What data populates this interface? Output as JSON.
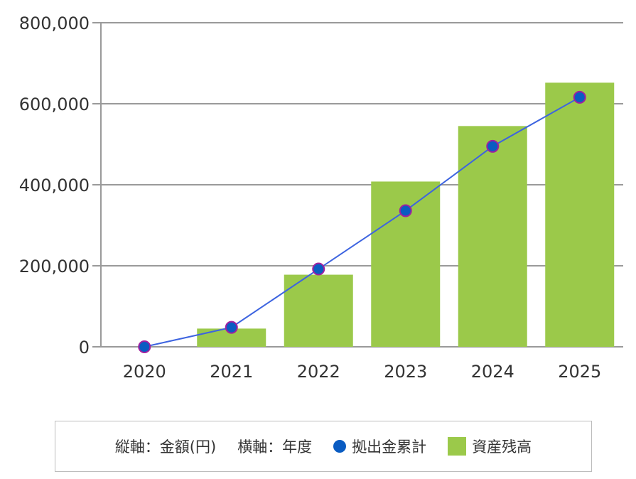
{
  "chart_data": {
    "type": "bar",
    "categories": [
      "2020",
      "2021",
      "2022",
      "2023",
      "2024",
      "2025"
    ],
    "series": [
      {
        "name": "資産残高",
        "kind": "bar",
        "color": "#9bc94a",
        "values": [
          0,
          45000,
          178000,
          408000,
          545000,
          652000
        ]
      },
      {
        "name": "拠出金累計",
        "kind": "line",
        "color": "#0a5cc2",
        "line_color": "#3d64e0",
        "marker_stroke": "#a020a0",
        "values": [
          0,
          48000,
          192000,
          336000,
          495000,
          616000
        ]
      }
    ],
    "ylim": [
      0,
      800000
    ],
    "yticks": [
      0,
      200000,
      400000,
      600000,
      800000
    ],
    "ytick_labels": [
      "0",
      "200,000",
      "400,000",
      "600,000",
      "800,000"
    ],
    "grid": true,
    "legend_position": "bottom",
    "legend": {
      "y_axis_note": "縦軸：金額(円)",
      "x_axis_note": "横軸：年度",
      "line_label": "拠出金累計",
      "bar_label": "資産残高"
    }
  }
}
